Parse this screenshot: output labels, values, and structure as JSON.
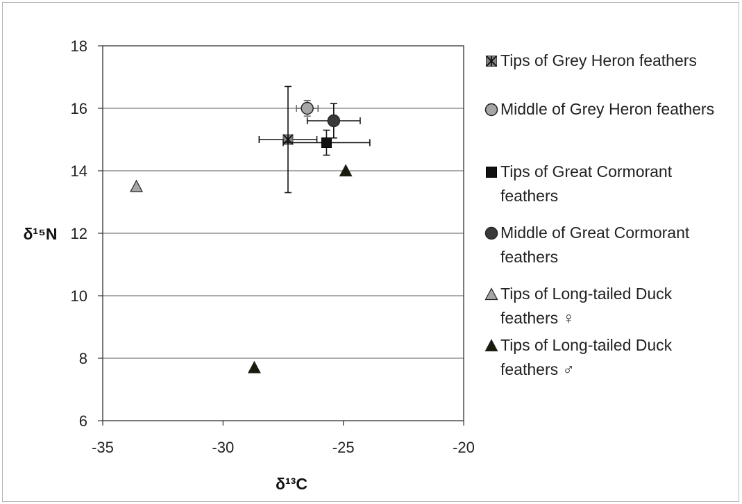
{
  "chart_data": {
    "type": "scatter",
    "xlabel": "δ¹³C",
    "ylabel": "δ¹⁵N",
    "xlim": [
      -35,
      -20
    ],
    "ylim": [
      6,
      18
    ],
    "xticks": [
      "-35",
      "-30",
      "-25",
      "-20"
    ],
    "yticks": [
      "6",
      "8",
      "10",
      "12",
      "14",
      "16",
      "18"
    ],
    "grid": "horizontal",
    "legend_position": "right",
    "series": [
      {
        "name": "Tips of Grey Heron feathers",
        "marker": "asterisk-square",
        "color": "#808080",
        "points": [
          {
            "x": -27.3,
            "y": 15.0,
            "xerr": 1.2,
            "yerr": 1.7
          }
        ]
      },
      {
        "name": "Middle of Grey Heron feathers",
        "marker": "circle",
        "color": "#a6a6a6",
        "points": [
          {
            "x": -26.5,
            "y": 16.0,
            "xerr": 0.45,
            "yerr": 0.25
          }
        ]
      },
      {
        "name": "Tips of Great Cormorant feathers",
        "marker": "square",
        "color": "#111111",
        "points": [
          {
            "x": -25.7,
            "y": 14.9,
            "xerr": 1.8,
            "yerr": 0.4
          }
        ]
      },
      {
        "name": "Middle of Great Cormorant feathers",
        "marker": "circle",
        "color": "#3a3a3a",
        "points": [
          {
            "x": -25.4,
            "y": 15.6,
            "xerr": 1.1,
            "yerr": 0.55
          }
        ]
      },
      {
        "name": "Tips of Long-tailed Duck feathers ♀",
        "marker": "triangle",
        "color": "#a6a6a6",
        "points": [
          {
            "x": -33.6,
            "y": 13.5
          }
        ]
      },
      {
        "name": "Tips of Long-tailed Duck feathers ♂",
        "marker": "triangle",
        "color": "#1a1a0a",
        "points": [
          {
            "x": -24.9,
            "y": 14.0
          },
          {
            "x": -28.7,
            "y": 7.7
          }
        ]
      }
    ]
  },
  "legend": {
    "items": [
      {
        "line1": "Tips of Grey Heron feathers",
        "line2": ""
      },
      {
        "line1": "Middle of Grey Heron feathers",
        "line2": ""
      },
      {
        "line1": "Tips of Great Cormorant",
        "line2": "feathers"
      },
      {
        "line1": "Middle of Great Cormorant",
        "line2": "feathers"
      },
      {
        "line1": "Tips of Long-tailed Duck",
        "line2": "feathers ♀"
      },
      {
        "line1": "Tips of Long-tailed Duck",
        "line2": "feathers ♂"
      }
    ]
  }
}
